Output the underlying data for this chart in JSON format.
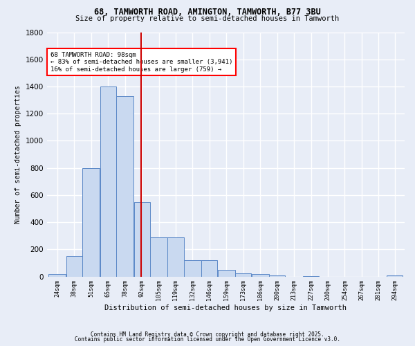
{
  "title1": "68, TAMWORTH ROAD, AMINGTON, TAMWORTH, B77 3BU",
  "title2": "Size of property relative to semi-detached houses in Tamworth",
  "xlabel": "Distribution of semi-detached houses by size in Tamworth",
  "ylabel": "Number of semi-detached properties",
  "footer1": "Contains HM Land Registry data © Crown copyright and database right 2025.",
  "footer2": "Contains public sector information licensed under the Open Government Licence v3.0.",
  "annotation_title": "68 TAMWORTH ROAD: 98sqm",
  "annotation_line1": "← 83% of semi-detached houses are smaller (3,941)",
  "annotation_line2": "16% of semi-detached houses are larger (759) →",
  "property_size": 98,
  "bin_labels": [
    "24sqm",
    "38sqm",
    "51sqm",
    "65sqm",
    "78sqm",
    "92sqm",
    "105sqm",
    "119sqm",
    "132sqm",
    "146sqm",
    "159sqm",
    "173sqm",
    "186sqm",
    "200sqm",
    "213sqm",
    "227sqm",
    "240sqm",
    "254sqm",
    "267sqm",
    "281sqm",
    "294sqm"
  ],
  "bin_edges": [
    24,
    38,
    51,
    65,
    78,
    92,
    105,
    119,
    132,
    146,
    159,
    173,
    186,
    200,
    213,
    227,
    240,
    254,
    267,
    281,
    294
  ],
  "bar_values": [
    20,
    150,
    800,
    1400,
    1330,
    550,
    290,
    290,
    120,
    120,
    50,
    25,
    20,
    10,
    0,
    5,
    0,
    0,
    0,
    0,
    10
  ],
  "bar_color": "#c9d9f0",
  "bar_edge_color": "#5b88c7",
  "vline_x": 98,
  "vline_color": "#cc0000",
  "bg_color": "#e8edf7",
  "plot_bg_color": "#e8edf7",
  "grid_color": "#ffffff",
  "ylim": [
    0,
    1800
  ],
  "yticks": [
    0,
    200,
    400,
    600,
    800,
    1000,
    1200,
    1400,
    1600,
    1800
  ]
}
